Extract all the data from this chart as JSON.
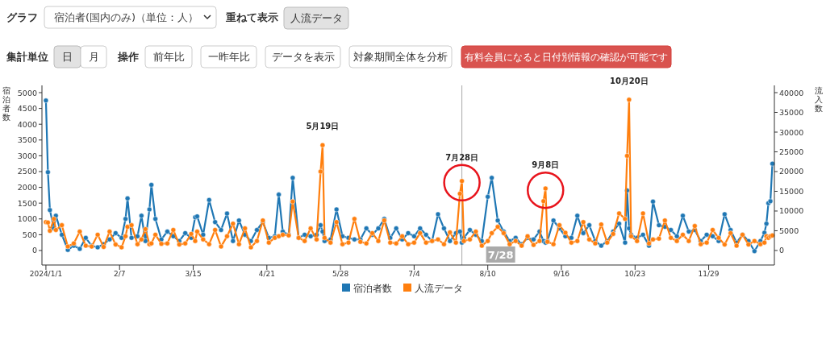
{
  "chart_data": {
    "type": "line",
    "ylabel": "宿泊者数",
    "y2label": "流入数",
    "x": [
      "2024-01-01",
      "2024-01-02",
      "2024-01-03",
      "2024-01-05",
      "2024-01-06",
      "2024-01-09",
      "2024-01-12",
      "2024-01-15",
      "2024-01-18",
      "2024-01-21",
      "2024-01-24",
      "2024-01-27",
      "2024-01-30",
      "2024-02-02",
      "2024-02-05",
      "2024-02-08",
      "2024-02-10",
      "2024-02-11",
      "2024-02-13",
      "2024-02-16",
      "2024-02-18",
      "2024-02-20",
      "2024-02-22",
      "2024-02-23",
      "2024-02-25",
      "2024-02-28",
      "2024-03-02",
      "2024-03-05",
      "2024-03-08",
      "2024-03-11",
      "2024-03-14",
      "2024-03-16",
      "2024-03-17",
      "2024-03-20",
      "2024-03-23",
      "2024-03-26",
      "2024-03-29",
      "2024-04-01",
      "2024-04-04",
      "2024-04-07",
      "2024-04-10",
      "2024-04-13",
      "2024-04-16",
      "2024-04-19",
      "2024-04-22",
      "2024-04-25",
      "2024-04-27",
      "2024-04-29",
      "2024-05-02",
      "2024-05-04",
      "2024-05-07",
      "2024-05-10",
      "2024-05-13",
      "2024-05-16",
      "2024-05-18",
      "2024-05-19",
      "2024-05-20",
      "2024-05-23",
      "2024-05-26",
      "2024-05-29",
      "2024-06-01",
      "2024-06-04",
      "2024-06-07",
      "2024-06-10",
      "2024-06-13",
      "2024-06-16",
      "2024-06-19",
      "2024-06-22",
      "2024-06-25",
      "2024-06-28",
      "2024-07-01",
      "2024-07-04",
      "2024-07-07",
      "2024-07-10",
      "2024-07-13",
      "2024-07-16",
      "2024-07-19",
      "2024-07-22",
      "2024-07-25",
      "2024-07-27",
      "2024-07-28",
      "2024-07-29",
      "2024-08-01",
      "2024-08-04",
      "2024-08-07",
      "2024-08-10",
      "2024-08-12",
      "2024-08-15",
      "2024-08-18",
      "2024-08-21",
      "2024-08-24",
      "2024-08-27",
      "2024-08-30",
      "2024-09-02",
      "2024-09-05",
      "2024-09-07",
      "2024-09-08",
      "2024-09-09",
      "2024-09-12",
      "2024-09-15",
      "2024-09-18",
      "2024-09-21",
      "2024-09-24",
      "2024-09-27",
      "2024-09-30",
      "2024-10-03",
      "2024-10-06",
      "2024-10-09",
      "2024-10-12",
      "2024-10-15",
      "2024-10-18",
      "2024-10-19",
      "2024-10-20",
      "2024-10-21",
      "2024-10-24",
      "2024-10-27",
      "2024-10-30",
      "2024-11-01",
      "2024-11-04",
      "2024-11-07",
      "2024-11-10",
      "2024-11-13",
      "2024-11-16",
      "2024-11-19",
      "2024-11-22",
      "2024-11-25",
      "2024-11-28",
      "2024-12-01",
      "2024-12-04",
      "2024-12-07",
      "2024-12-10",
      "2024-12-13",
      "2024-12-16",
      "2024-12-19",
      "2024-12-22",
      "2024-12-25",
      "2024-12-27",
      "2024-12-28",
      "2024-12-29",
      "2024-12-30",
      "2024-12-31"
    ],
    "series": [
      {
        "name": "宿泊者数",
        "color": "#1f77b4",
        "values": [
          4750,
          2480,
          1280,
          700,
          1100,
          500,
          20,
          150,
          50,
          400,
          150,
          100,
          200,
          350,
          550,
          400,
          1000,
          1650,
          400,
          450,
          1100,
          300,
          1300,
          2080,
          1000,
          350,
          600,
          450,
          300,
          550,
          400,
          1050,
          1080,
          500,
          1600,
          900,
          650,
          1170,
          300,
          950,
          500,
          300,
          650,
          900,
          400,
          450,
          1770,
          600,
          500,
          2300,
          400,
          500,
          450,
          500,
          800,
          600,
          300,
          350,
          1300,
          450,
          400,
          350,
          350,
          700,
          500,
          700,
          1000,
          400,
          700,
          350,
          550,
          450,
          700,
          500,
          300,
          1150,
          700,
          300,
          550,
          600,
          250,
          400,
          650,
          500,
          300,
          1700,
          2300,
          950,
          600,
          300,
          400,
          200,
          400,
          350,
          600,
          300,
          250,
          300,
          950,
          700,
          450,
          400,
          1100,
          550,
          800,
          300,
          150,
          300,
          600,
          850,
          250,
          1900,
          700,
          500,
          400,
          500,
          150,
          1550,
          800,
          750,
          650,
          450,
          1100,
          600,
          650,
          300,
          500,
          450,
          300,
          1150,
          650,
          250,
          500,
          300,
          -20,
          300,
          560,
          850,
          1500,
          1560,
          2750
        ]
      },
      {
        "name": "人流データ",
        "color": "#ff7f0e",
        "axis": "y2",
        "values": [
          7200,
          7100,
          5000,
          8000,
          5200,
          6400,
          1000,
          1800,
          4800,
          1200,
          1000,
          4000,
          900,
          4800,
          1500,
          800,
          3600,
          6000,
          6400,
          1600,
          2800,
          5400,
          1600,
          1800,
          4000,
          1700,
          1800,
          5200,
          1500,
          1800,
          4200,
          2400,
          4800,
          2800,
          1600,
          5200,
          1000,
          3600,
          6800,
          1600,
          5600,
          800,
          2400,
          7600,
          2000,
          3200,
          3600,
          4000,
          3800,
          12400,
          3200,
          2400,
          5600,
          2800,
          20000,
          26700,
          3200,
          2000,
          7200,
          1600,
          2000,
          8000,
          2200,
          1800,
          4400,
          2400,
          7600,
          2000,
          1800,
          3600,
          1600,
          2000,
          4400,
          2000,
          2400,
          2800,
          1600,
          4600,
          2000,
          14400,
          17600,
          2400,
          2800,
          4800,
          1200,
          2400,
          4400,
          6000,
          4400,
          1600,
          2400,
          1200,
          3600,
          1400,
          2400,
          12500,
          15700,
          2200,
          1600,
          6400,
          4500,
          2000,
          2400,
          7200,
          2800,
          1800,
          6600,
          2000,
          4200,
          9400,
          8000,
          24000,
          38200,
          3600,
          2400,
          9400,
          1800,
          2800,
          3000,
          7600,
          3200,
          2400,
          4000,
          2400,
          6200,
          1600,
          2000,
          5200,
          3200,
          1500,
          4400,
          1200,
          4000,
          1500,
          2400,
          1600,
          2000,
          3600,
          3200,
          3600,
          3800
        ]
      }
    ],
    "xlim": [
      "2023-12-30",
      "2025-01-01"
    ],
    "xticks": [
      {
        "value": "2024-01-01",
        "label": "2024/1/1"
      },
      {
        "value": "2024-02-07",
        "label": "2/7"
      },
      {
        "value": "2024-03-15",
        "label": "3/15"
      },
      {
        "value": "2024-04-21",
        "label": "4/21"
      },
      {
        "value": "2024-05-28",
        "label": "5/28"
      },
      {
        "value": "2024-07-04",
        "label": "7/4"
      },
      {
        "value": "2024-08-10",
        "label": "8/10"
      },
      {
        "value": "2024-09-16",
        "label": "9/16"
      },
      {
        "value": "2024-10-23",
        "label": "10/23"
      },
      {
        "value": "2024-11-29",
        "label": "11/29"
      }
    ],
    "ylim": [
      -460,
      5230
    ],
    "yticks": [
      0,
      500,
      1000,
      1500,
      2000,
      2500,
      3000,
      3500,
      4000,
      4500,
      5000
    ],
    "y2lim": [
      -3680,
      41840
    ],
    "y2ticks": [
      0,
      5000,
      10000,
      15000,
      20000,
      25000,
      30000,
      35000,
      40000
    ],
    "ref_lines": [
      {
        "axis": "x",
        "value": "2024-07-28",
        "label": "7/28",
        "color": "#aaaaaa"
      }
    ],
    "annotations": [
      "グラフ",
      "宿泊者(国内のみ)（単位：人）",
      "重ねて表示",
      "人流データ",
      "集計単位",
      "日",
      "月",
      "操作",
      "前年比",
      "一昨年比",
      "データを表示",
      "対象期間全体を分析",
      "有料会員になると日付別情報の確認が可能です",
      {
        "text": "5月19日",
        "x": "2024-05-19",
        "y": 3340
      },
      {
        "text": "7月28日",
        "x": "2024-07-28",
        "y": 2200
      },
      {
        "text": "9月8日",
        "x": "2024-09-08",
        "y": 1960
      },
      {
        "text": "10月20日",
        "x": "2024-10-20",
        "y": 4775
      }
    ],
    "legend": "bottom",
    "marker": "circle",
    "line_style": "solid",
    "grid": false
  }
}
